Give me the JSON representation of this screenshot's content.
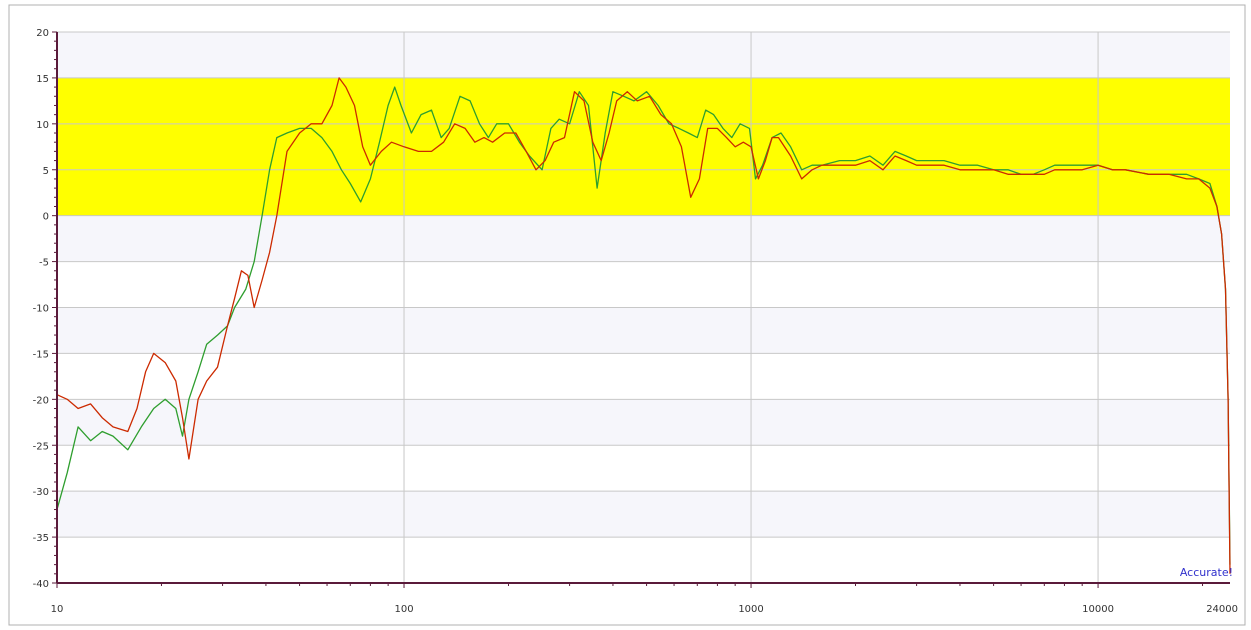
{
  "chart_data": {
    "type": "line",
    "x_scale": "log",
    "xlim": [
      10,
      24000
    ],
    "ylim": [
      -40,
      20
    ],
    "x_ticks": [
      10,
      100,
      1000,
      10000,
      24000
    ],
    "x_tick_labels": [
      "10",
      "100",
      "1000",
      "10000",
      "24000"
    ],
    "y_ticks": [
      20,
      15,
      10,
      5,
      0,
      -5,
      -10,
      -15,
      -20,
      -25,
      -30,
      -35,
      -40
    ],
    "y_tick_labels": [
      "20",
      "15",
      "10",
      "5",
      "0",
      "-5",
      "-10",
      "-15",
      "-20",
      "-25",
      "-30",
      "-35",
      "-40"
    ],
    "grid": true,
    "highlight_band": {
      "y_from": 0,
      "y_to": 15,
      "color": "#ffff00"
    },
    "watermark": "Accurate!",
    "series": [
      {
        "color": "#2e9e2e",
        "points": [
          [
            10,
            -32
          ],
          [
            10.7,
            -28
          ],
          [
            11.5,
            -23
          ],
          [
            12.5,
            -24.5
          ],
          [
            13.5,
            -23.5
          ],
          [
            14.5,
            -24
          ],
          [
            16,
            -25.5
          ],
          [
            17.5,
            -23
          ],
          [
            19,
            -21
          ],
          [
            20.5,
            -20
          ],
          [
            22,
            -21
          ],
          [
            23,
            -24
          ],
          [
            24,
            -20
          ],
          [
            25.5,
            -17
          ],
          [
            27,
            -14
          ],
          [
            29,
            -13
          ],
          [
            31,
            -12
          ],
          [
            32.5,
            -10
          ],
          [
            35,
            -8
          ],
          [
            37,
            -5
          ],
          [
            39,
            0
          ],
          [
            41,
            5
          ],
          [
            43,
            8.5
          ],
          [
            46,
            9
          ],
          [
            50,
            9.5
          ],
          [
            54,
            9.5
          ],
          [
            58,
            8.5
          ],
          [
            62,
            7
          ],
          [
            66,
            5
          ],
          [
            70,
            3.5
          ],
          [
            75,
            1.5
          ],
          [
            80,
            4
          ],
          [
            85,
            8
          ],
          [
            90,
            12
          ],
          [
            94,
            14
          ],
          [
            98,
            12
          ],
          [
            105,
            9
          ],
          [
            112,
            11
          ],
          [
            120,
            11.5
          ],
          [
            128,
            8.5
          ],
          [
            135,
            9.5
          ],
          [
            145,
            13
          ],
          [
            155,
            12.5
          ],
          [
            165,
            10
          ],
          [
            175,
            8.5
          ],
          [
            185,
            10
          ],
          [
            200,
            10
          ],
          [
            215,
            8
          ],
          [
            230,
            6.5
          ],
          [
            250,
            5
          ],
          [
            265,
            9.5
          ],
          [
            280,
            10.5
          ],
          [
            300,
            10
          ],
          [
            320,
            13.5
          ],
          [
            340,
            12
          ],
          [
            360,
            3
          ],
          [
            380,
            9
          ],
          [
            400,
            13.5
          ],
          [
            430,
            13
          ],
          [
            460,
            12.5
          ],
          [
            500,
            13.5
          ],
          [
            540,
            12
          ],
          [
            580,
            10
          ],
          [
            620,
            9.5
          ],
          [
            660,
            9
          ],
          [
            700,
            8.5
          ],
          [
            740,
            11.5
          ],
          [
            780,
            11
          ],
          [
            830,
            9.5
          ],
          [
            880,
            8.5
          ],
          [
            930,
            10
          ],
          [
            990,
            9.5
          ],
          [
            1030,
            4
          ],
          [
            1080,
            5.5
          ],
          [
            1150,
            8.5
          ],
          [
            1220,
            9
          ],
          [
            1300,
            7.5
          ],
          [
            1400,
            5
          ],
          [
            1500,
            5.5
          ],
          [
            1600,
            5.5
          ],
          [
            1800,
            6
          ],
          [
            2000,
            6
          ],
          [
            2200,
            6.5
          ],
          [
            2400,
            5.5
          ],
          [
            2600,
            7
          ],
          [
            2800,
            6.5
          ],
          [
            3000,
            6
          ],
          [
            3300,
            6
          ],
          [
            3600,
            6
          ],
          [
            4000,
            5.5
          ],
          [
            4500,
            5.5
          ],
          [
            5000,
            5
          ],
          [
            5500,
            5
          ],
          [
            6000,
            4.5
          ],
          [
            6500,
            4.5
          ],
          [
            7000,
            5
          ],
          [
            7500,
            5.5
          ],
          [
            8000,
            5.5
          ],
          [
            9000,
            5.5
          ],
          [
            10000,
            5.5
          ],
          [
            11000,
            5
          ],
          [
            12000,
            5
          ],
          [
            14000,
            4.5
          ],
          [
            16000,
            4.5
          ],
          [
            18000,
            4.5
          ],
          [
            19500,
            4
          ],
          [
            21000,
            3.5
          ],
          [
            22000,
            1
          ],
          [
            22700,
            -2
          ],
          [
            23300,
            -8
          ],
          [
            23700,
            -20
          ],
          [
            24000,
            -38
          ]
        ]
      },
      {
        "color": "#cc2a00",
        "points": [
          [
            10,
            -19.5
          ],
          [
            10.7,
            -20
          ],
          [
            11.5,
            -21
          ],
          [
            12.5,
            -20.5
          ],
          [
            13.5,
            -22
          ],
          [
            14.5,
            -23
          ],
          [
            16,
            -23.5
          ],
          [
            17,
            -21
          ],
          [
            18,
            -17
          ],
          [
            19,
            -15
          ],
          [
            20.5,
            -16
          ],
          [
            22,
            -18
          ],
          [
            23,
            -22
          ],
          [
            24,
            -26.5
          ],
          [
            25.5,
            -20
          ],
          [
            27,
            -18
          ],
          [
            29,
            -16.5
          ],
          [
            31,
            -12
          ],
          [
            32.5,
            -9
          ],
          [
            34,
            -6
          ],
          [
            35.5,
            -6.5
          ],
          [
            37,
            -10
          ],
          [
            39,
            -7
          ],
          [
            41,
            -4
          ],
          [
            43,
            0
          ],
          [
            46,
            7
          ],
          [
            50,
            9
          ],
          [
            54,
            10
          ],
          [
            58,
            10
          ],
          [
            62,
            12
          ],
          [
            65,
            15
          ],
          [
            68,
            14
          ],
          [
            72,
            12
          ],
          [
            76,
            7.5
          ],
          [
            80,
            5.5
          ],
          [
            86,
            7
          ],
          [
            92,
            8
          ],
          [
            100,
            7.5
          ],
          [
            110,
            7
          ],
          [
            120,
            7
          ],
          [
            130,
            8
          ],
          [
            140,
            10
          ],
          [
            150,
            9.5
          ],
          [
            160,
            8
          ],
          [
            170,
            8.5
          ],
          [
            180,
            8
          ],
          [
            195,
            9
          ],
          [
            210,
            9
          ],
          [
            225,
            7
          ],
          [
            240,
            5
          ],
          [
            255,
            6
          ],
          [
            270,
            8
          ],
          [
            290,
            8.5
          ],
          [
            310,
            13.5
          ],
          [
            330,
            12.5
          ],
          [
            350,
            8
          ],
          [
            370,
            6
          ],
          [
            390,
            9
          ],
          [
            410,
            12.5
          ],
          [
            440,
            13.5
          ],
          [
            470,
            12.5
          ],
          [
            510,
            13
          ],
          [
            550,
            11
          ],
          [
            590,
            10
          ],
          [
            630,
            7.5
          ],
          [
            670,
            2
          ],
          [
            710,
            4
          ],
          [
            750,
            9.5
          ],
          [
            800,
            9.5
          ],
          [
            850,
            8.5
          ],
          [
            900,
            7.5
          ],
          [
            950,
            8
          ],
          [
            1000,
            7.5
          ],
          [
            1050,
            4
          ],
          [
            1100,
            6
          ],
          [
            1150,
            8.5
          ],
          [
            1200,
            8.5
          ],
          [
            1300,
            6.5
          ],
          [
            1400,
            4
          ],
          [
            1500,
            5
          ],
          [
            1600,
            5.5
          ],
          [
            1800,
            5.5
          ],
          [
            2000,
            5.5
          ],
          [
            2200,
            6
          ],
          [
            2400,
            5
          ],
          [
            2600,
            6.5
          ],
          [
            2800,
            6
          ],
          [
            3000,
            5.5
          ],
          [
            3300,
            5.5
          ],
          [
            3600,
            5.5
          ],
          [
            4000,
            5
          ],
          [
            4500,
            5
          ],
          [
            5000,
            5
          ],
          [
            5500,
            4.5
          ],
          [
            6000,
            4.5
          ],
          [
            6500,
            4.5
          ],
          [
            7000,
            4.5
          ],
          [
            7500,
            5
          ],
          [
            8000,
            5
          ],
          [
            9000,
            5
          ],
          [
            10000,
            5.5
          ],
          [
            11000,
            5
          ],
          [
            12000,
            5
          ],
          [
            14000,
            4.5
          ],
          [
            16000,
            4.5
          ],
          [
            18000,
            4
          ],
          [
            19500,
            4
          ],
          [
            21000,
            3
          ],
          [
            22000,
            1
          ],
          [
            22700,
            -2
          ],
          [
            23300,
            -8
          ],
          [
            23700,
            -20
          ],
          [
            24000,
            -39
          ]
        ]
      }
    ]
  }
}
